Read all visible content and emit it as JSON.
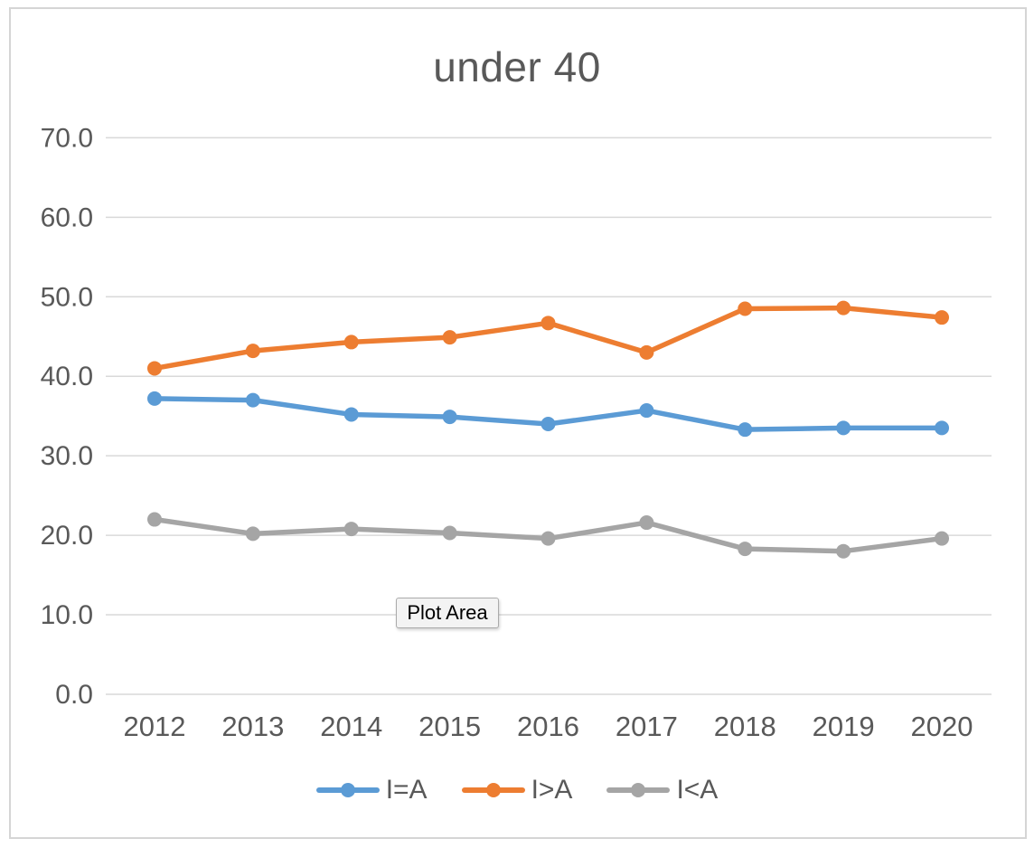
{
  "title": "under 40",
  "tooltip": {
    "label": "Plot Area"
  },
  "colors": {
    "grid": "#d9d9d9",
    "axis_text": "#595959",
    "frame_border": "#d5d5d5",
    "tooltip_bg": "#f3f3f3"
  },
  "chart_data": {
    "type": "line",
    "title": "under 40",
    "xlabel": "",
    "ylabel": "",
    "ylim": [
      0,
      70
    ],
    "grid": true,
    "legend_position": "bottom",
    "categories": [
      "2012",
      "2013",
      "2014",
      "2015",
      "2016",
      "2017",
      "2018",
      "2019",
      "2020"
    ],
    "y_ticks": [
      {
        "value": 0,
        "label": "0.0"
      },
      {
        "value": 10,
        "label": "10.0"
      },
      {
        "value": 20,
        "label": "20.0"
      },
      {
        "value": 30,
        "label": "30.0"
      },
      {
        "value": 40,
        "label": "40.0"
      },
      {
        "value": 50,
        "label": "50.0"
      },
      {
        "value": 60,
        "label": "60.0"
      },
      {
        "value": 70,
        "label": "70.0"
      }
    ],
    "series": [
      {
        "name": "I=A",
        "color": "#5b9bd5",
        "values": [
          37.2,
          37.0,
          35.2,
          34.9,
          34.0,
          35.7,
          33.3,
          33.5,
          33.5
        ]
      },
      {
        "name": "I>A",
        "color": "#ed7d31",
        "values": [
          41.0,
          43.2,
          44.3,
          44.9,
          46.7,
          43.0,
          48.5,
          48.6,
          47.4
        ]
      },
      {
        "name": "I<A",
        "color": "#a5a5a5",
        "values": [
          22.0,
          20.2,
          20.8,
          20.3,
          19.6,
          21.6,
          18.3,
          18.0,
          19.6
        ]
      }
    ]
  }
}
